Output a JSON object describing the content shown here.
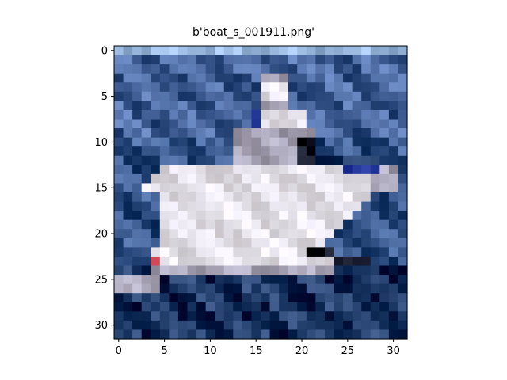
{
  "figure": {
    "title": "b'boat_s_001911.png'"
  },
  "axes": {
    "x_ticks": [
      "0",
      "5",
      "10",
      "15",
      "20",
      "25",
      "30"
    ],
    "y_ticks": [
      "0",
      "5",
      "10",
      "15",
      "20",
      "25",
      "30"
    ]
  },
  "image": {
    "subject": "white boat on blue water (pixelated 32x32 image)",
    "colors": {
      "sky": "#aac8f0",
      "water_light": "#5a78b0",
      "water_mid": "#4a6aa0",
      "water_dark": "#2e4a78",
      "boat_white": "#f2eef8",
      "boat_shadow": "#b8b4c8",
      "accent_blue": "#2a3ea0",
      "accent_red": "#d84a5a",
      "dark": "#1e2234"
    }
  }
}
